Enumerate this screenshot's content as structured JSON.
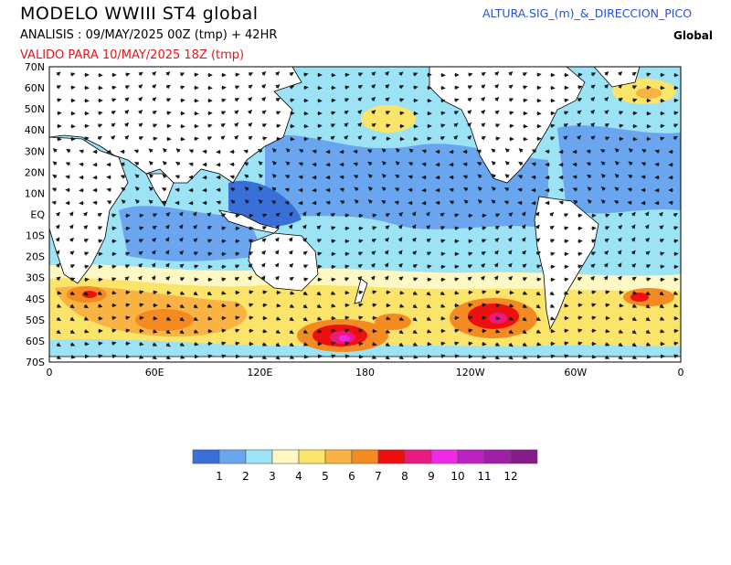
{
  "header": {
    "title": "MODELO  WWIII  ST4  global",
    "analysis": "ANALISIS : 09/MAY/2025 00Z  (tmp) + 42HR",
    "valid": "VALIDO PARA  10/MAY/2025 18Z  (tmp)",
    "product": "ALTURA.SIG_(m)_&_DIRECCION_PICO",
    "region": "Global"
  },
  "map": {
    "lat_labels": [
      "70N",
      "60N",
      "50N",
      "40N",
      "30N",
      "20N",
      "10N",
      "EQ",
      "10S",
      "20S",
      "30S",
      "40S",
      "50S",
      "60S",
      "70S"
    ],
    "lon_labels": [
      "0",
      "60E",
      "120E",
      "180",
      "120W",
      "60W",
      "0"
    ],
    "colors": {
      "ocean_low": "#9be3f5",
      "land": "#ffffff",
      "coast": "#000000"
    }
  },
  "legend": {
    "labels": [
      "1",
      "2",
      "3",
      "4",
      "5",
      "6",
      "7",
      "8",
      "9",
      "10",
      "11",
      "12"
    ],
    "colors": [
      "#3a6fd8",
      "#6aa6ef",
      "#9be3f5",
      "#fdf8c4",
      "#fbe46a",
      "#f8b343",
      "#f48a22",
      "#ee1010",
      "#ea1a80",
      "#ef2ae6",
      "#bc22c0",
      "#a11ea8",
      "#841b88"
    ]
  }
}
